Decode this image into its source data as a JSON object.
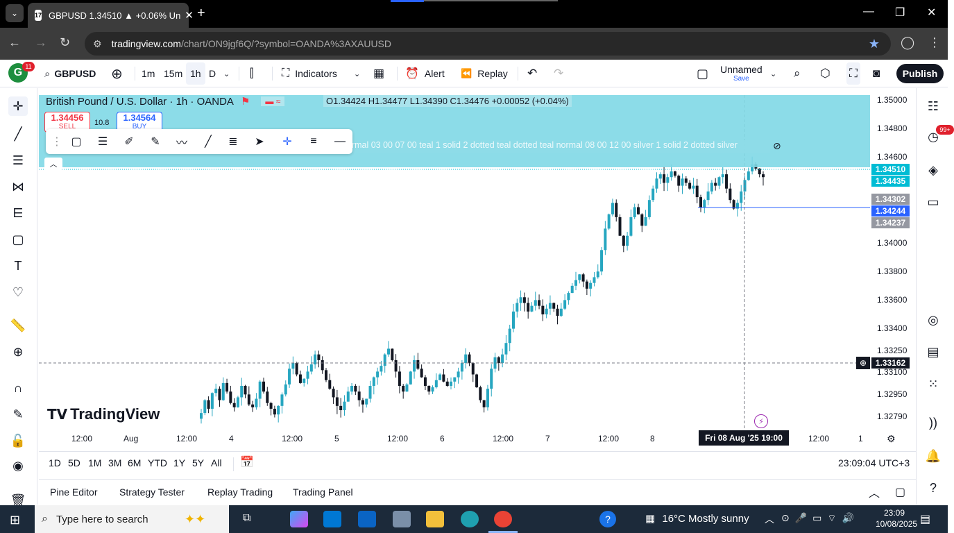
{
  "browser": {
    "tab_title": "GBPUSD 1.34510 ▲ +0.06% Un",
    "url_host": "tradingview.com",
    "url_path": "/chart/ON9jgf6Q/?symbol=OANDA%3AXAUUSD"
  },
  "toolbar": {
    "avatar_letter": "G",
    "avatar_badge": "11",
    "symbol": "GBPUSD",
    "intervals": [
      "1m",
      "15m",
      "1h",
      "D"
    ],
    "indicators_label": "Indicators",
    "alert_label": "Alert",
    "replay_label": "Replay",
    "layout_name": "Unnamed",
    "layout_save": "Save",
    "publish_label": "Publish"
  },
  "legend": {
    "symbol_title": "British Pound / U.S. Dollar · 1h · OANDA",
    "ohlc": "O1.34424 H1.34477 L1.34390 C1.34476 +0.00052 (+0.04%)",
    "sell_price": "1.34456",
    "sell_label": "SELL",
    "spread": "10.8",
    "buy_price": "1.34564",
    "buy_label": "BUY",
    "indicator_text": "ormal 03 00 07 00 teal 1 solid 2 dotted teal dotted teal normal 08 00 12 00 silver 1 solid 2 dotted silver"
  },
  "chart_data": {
    "type": "candlestick",
    "symbol": "GBPUSD",
    "interval": "1h",
    "price_ticks": [
      "1.35000",
      "1.34800",
      "1.34600",
      "1.34000",
      "1.33800",
      "1.33600",
      "1.33400",
      "1.33250",
      "1.33100",
      "1.32950",
      "1.32790"
    ],
    "ylim": [
      1.3272,
      1.3504
    ],
    "badges": [
      {
        "value": "1.34510",
        "color": "#00bcd4"
      },
      {
        "value": "1.34435",
        "color": "#00bcd4"
      },
      {
        "value": "1.34302",
        "color": "#9598a1"
      },
      {
        "value": "1.34244",
        "color": "#2962ff"
      },
      {
        "value": "1.34237",
        "color": "#9598a1"
      },
      {
        "value": "1.33162",
        "color": "#131722"
      }
    ],
    "time_ticks": [
      "12:00",
      "Aug",
      "12:00",
      "4",
      "12:00",
      "5",
      "12:00",
      "6",
      "12:00",
      "7",
      "12:00",
      "8",
      "12:00",
      "1"
    ],
    "crosshair_time": "Fri 08 Aug '25   19:00",
    "up_color": "#26a6c0",
    "down_color": "#131722",
    "closes": [
      1.3281,
      1.329,
      1.3284,
      1.3295,
      1.3298,
      1.329,
      1.3302,
      1.3296,
      1.3288,
      1.3285,
      1.3292,
      1.33,
      1.3294,
      1.3287,
      1.3285,
      1.3291,
      1.3303,
      1.3296,
      1.3288,
      1.3284,
      1.328,
      1.3286,
      1.3294,
      1.3301,
      1.3312,
      1.3316,
      1.3308,
      1.3302,
      1.3305,
      1.331,
      1.3315,
      1.3322,
      1.3318,
      1.3311,
      1.3304,
      1.3298,
      1.3292,
      1.3286,
      1.3283,
      1.3289,
      1.3296,
      1.33,
      1.3296,
      1.329,
      1.3287,
      1.3291,
      1.33,
      1.3306,
      1.331,
      1.3314,
      1.3322,
      1.3326,
      1.3318,
      1.331,
      1.33,
      1.3296,
      1.3301,
      1.331,
      1.3318,
      1.3312,
      1.3306,
      1.33,
      1.3296,
      1.3299,
      1.3304,
      1.3308,
      1.3303,
      1.33,
      1.3303,
      1.3306,
      1.331,
      1.3316,
      1.3322,
      1.3316,
      1.3308,
      1.3299,
      1.329,
      1.3285,
      1.3298,
      1.3312,
      1.332,
      1.3316,
      1.3322,
      1.333,
      1.334,
      1.3352,
      1.3358,
      1.3362,
      1.3358,
      1.3352,
      1.3356,
      1.336,
      1.3356,
      1.335,
      1.3354,
      1.3358,
      1.3354,
      1.3349,
      1.3354,
      1.336,
      1.3365,
      1.337,
      1.3374,
      1.3378,
      1.3373,
      1.3368,
      1.3372,
      1.3376,
      1.338,
      1.3395,
      1.341,
      1.342,
      1.3428,
      1.3418,
      1.3405,
      1.3398,
      1.3405,
      1.3418,
      1.3425,
      1.342,
      1.3412,
      1.3418,
      1.343,
      1.3438,
      1.3445,
      1.3448,
      1.3442,
      1.3446,
      1.345,
      1.3447,
      1.344,
      1.3445,
      1.3442,
      1.3438,
      1.344,
      1.3432,
      1.3425,
      1.343,
      1.3436,
      1.3442,
      1.344,
      1.3446,
      1.3448,
      1.3438,
      1.343,
      1.3424,
      1.3428,
      1.3436,
      1.3444,
      1.345,
      1.3455,
      1.3452,
      1.3448,
      1.3446
    ]
  },
  "range_bar": {
    "ranges": [
      "1D",
      "5D",
      "1M",
      "3M",
      "6M",
      "YTD",
      "1Y",
      "5Y",
      "All"
    ],
    "clock": "23:09:04 UTC+3"
  },
  "bottom_panel": {
    "tabs": [
      "Pine Editor",
      "Strategy Tester",
      "Replay Trading",
      "Trading Panel"
    ]
  },
  "right_toolbar": {
    "notification_badge": "99+"
  },
  "taskbar": {
    "search_placeholder": "Type here to search",
    "weather": "16°C  Mostly sunny",
    "time": "23:09",
    "date": "10/08/2025"
  },
  "watermark": "TradingView"
}
